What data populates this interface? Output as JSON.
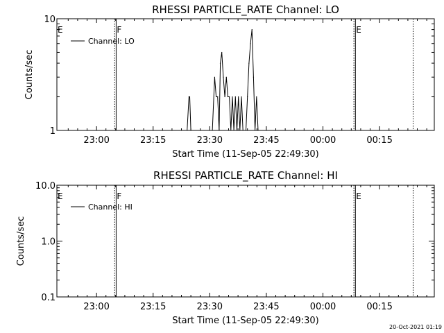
{
  "chart_data": [
    {
      "type": "line",
      "title": "RHESSI PARTICLE_RATE Channel: LO",
      "xlabel": "Start Time (11-Sep-05 22:49:30)",
      "ylabel": "Counts/sec",
      "x_ticks": [
        "23:00",
        "23:15",
        "23:30",
        "23:45",
        "00:00",
        "00:15"
      ],
      "x_tick_minutes": [
        10.5,
        25.5,
        40.5,
        55.5,
        70.5,
        85.5
      ],
      "xlim_minutes": [
        0,
        100
      ],
      "y_scale": "log",
      "ylim": [
        1,
        10
      ],
      "y_ticks": [
        "1",
        "10"
      ],
      "y_tick_values": [
        1,
        10
      ],
      "legend": {
        "position": "top-left",
        "entries": [
          "Channel: LO"
        ]
      },
      "markers": [
        {
          "label": "E",
          "minute": 0,
          "style": "solid"
        },
        {
          "label": "F",
          "minute": 15.7,
          "style": "solid"
        },
        {
          "label": "",
          "minute": 15.3,
          "style": "dotted"
        },
        {
          "label": "E",
          "minute": 79.1,
          "style": "solid"
        },
        {
          "label": "",
          "minute": 78.7,
          "style": "dotted"
        },
        {
          "label": "",
          "minute": 94.4,
          "style": "dotted"
        }
      ],
      "series": [
        {
          "name": "Channel: LO",
          "x_minutes": [
            34.5,
            35.0,
            35.2,
            35.5,
            41.2,
            41.8,
            42.2,
            42.6,
            43.0,
            43.3,
            43.7,
            44.1,
            44.5,
            44.9,
            45.3,
            45.7,
            46.1,
            46.5,
            46.9,
            47.3,
            47.7,
            48.1,
            48.5,
            48.9,
            49.3,
            49.7,
            50.1,
            50.5,
            50.9,
            51.3,
            51.7,
            52.1,
            52.5,
            52.9,
            53.3,
            53.7,
            54.1,
            54.5,
            54.9,
            55.3
          ],
          "values": [
            1,
            2,
            2,
            1,
            1,
            3,
            2,
            2,
            1,
            4,
            5,
            3,
            2,
            3,
            2,
            2,
            1,
            2,
            1,
            2,
            1,
            2,
            1,
            2,
            1,
            1,
            1,
            2,
            4,
            6,
            8,
            3,
            1,
            2,
            1,
            1,
            1,
            1,
            1,
            1
          ]
        }
      ]
    },
    {
      "type": "line",
      "title": "RHESSI PARTICLE_RATE Channel: HI",
      "xlabel": "Start Time (11-Sep-05 22:49:30)",
      "ylabel": "Counts/sec",
      "x_ticks": [
        "23:00",
        "23:15",
        "23:30",
        "23:45",
        "00:00",
        "00:15"
      ],
      "x_tick_minutes": [
        10.5,
        25.5,
        40.5,
        55.5,
        70.5,
        85.5
      ],
      "xlim_minutes": [
        0,
        100
      ],
      "y_scale": "log",
      "ylim": [
        0.1,
        10
      ],
      "y_ticks": [
        "0.1",
        "1.0",
        "10.0"
      ],
      "y_tick_values": [
        0.1,
        1,
        10
      ],
      "legend": {
        "position": "top-left",
        "entries": [
          "Channel: HI"
        ]
      },
      "markers": [
        {
          "label": "E",
          "minute": 0,
          "style": "solid"
        },
        {
          "label": "F",
          "minute": 15.7,
          "style": "solid"
        },
        {
          "label": "",
          "minute": 15.3,
          "style": "dotted"
        },
        {
          "label": "E",
          "minute": 79.1,
          "style": "solid"
        },
        {
          "label": "",
          "minute": 78.7,
          "style": "dotted"
        },
        {
          "label": "",
          "minute": 94.4,
          "style": "dotted"
        }
      ],
      "series": [
        {
          "name": "Channel: HI",
          "x_minutes": [],
          "values": []
        }
      ]
    }
  ],
  "footer": {
    "timestamp": "20-Oct-2021 01:19"
  }
}
